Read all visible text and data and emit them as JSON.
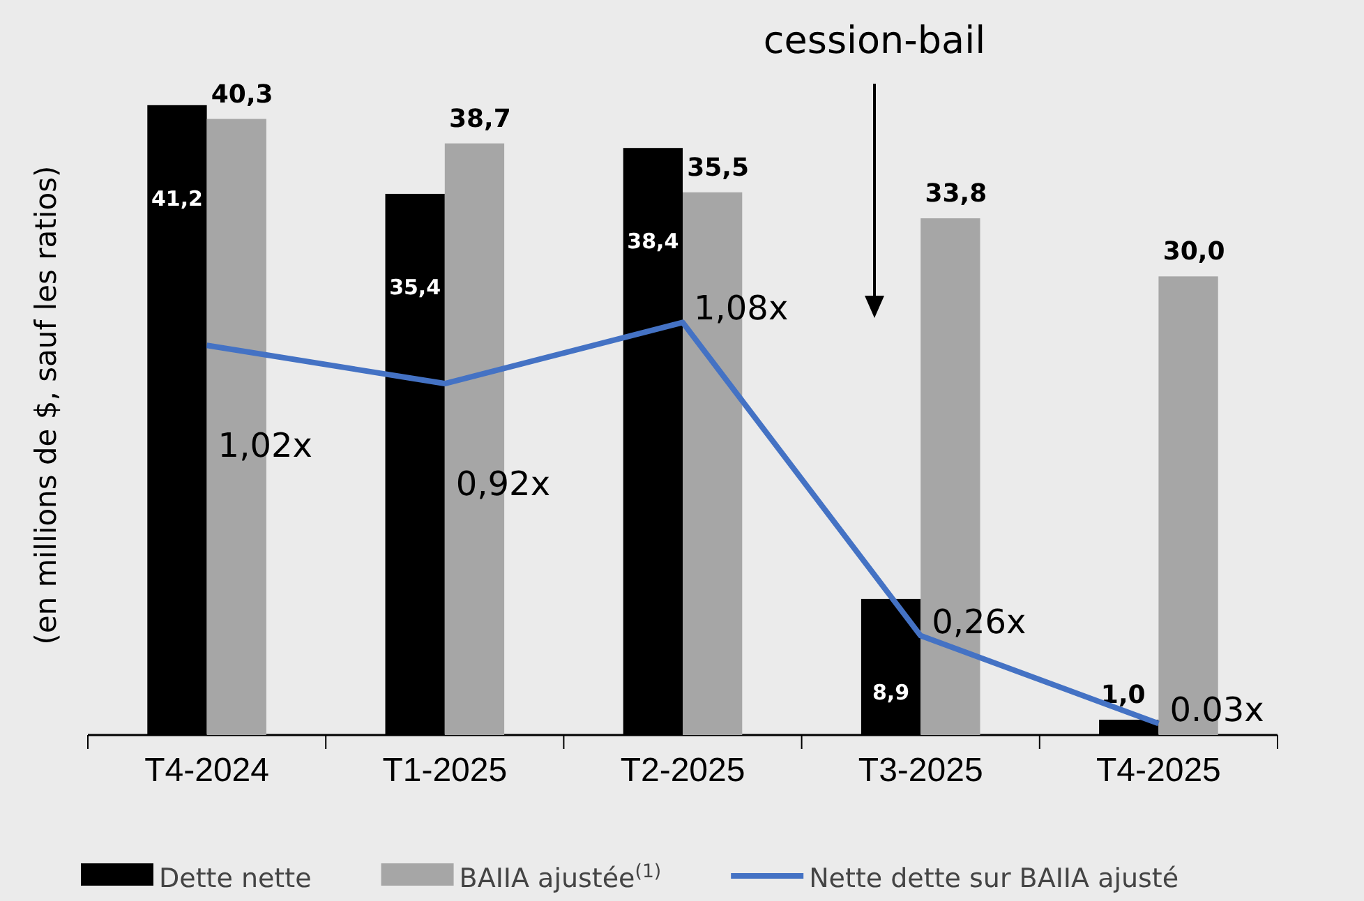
{
  "chart_data": {
    "type": "bar",
    "ylabel": "(en millions de $, sauf les ratios)",
    "categories": [
      "T4-2024",
      "T1-2025",
      "T2-2025",
      "T3-2025",
      "T4-2025"
    ],
    "tick_labels": "x",
    "legend": "bottom",
    "series": [
      {
        "name": "Dette nette",
        "color": "#000000",
        "values": [
          41.2,
          35.4,
          38.4,
          8.9,
          1.0
        ],
        "value_labels": [
          "41,2",
          "35,4",
          "38,4",
          "8,9",
          "1,0"
        ]
      },
      {
        "name": "BAIIA ajustée$^{(1)}$",
        "color": "#a6a6a6",
        "values": [
          40.3,
          38.7,
          35.5,
          33.8,
          30.0
        ],
        "value_labels": [
          "40,3",
          "38,7",
          "35,5",
          "33,8",
          "30,0"
        ]
      },
      {
        "name": "Nette dette sur BAIIA ajusté",
        "type": "line",
        "axis": "y2",
        "color": "#4472c4",
        "values": [
          1.02,
          0.92,
          1.08,
          0.26,
          0.03
        ],
        "value_labels": [
          "1,02x",
          "0,92x",
          "1,08x",
          "0,26x",
          "0.03x"
        ]
      }
    ],
    "annotations": [
      "cession-bail"
    ]
  }
}
